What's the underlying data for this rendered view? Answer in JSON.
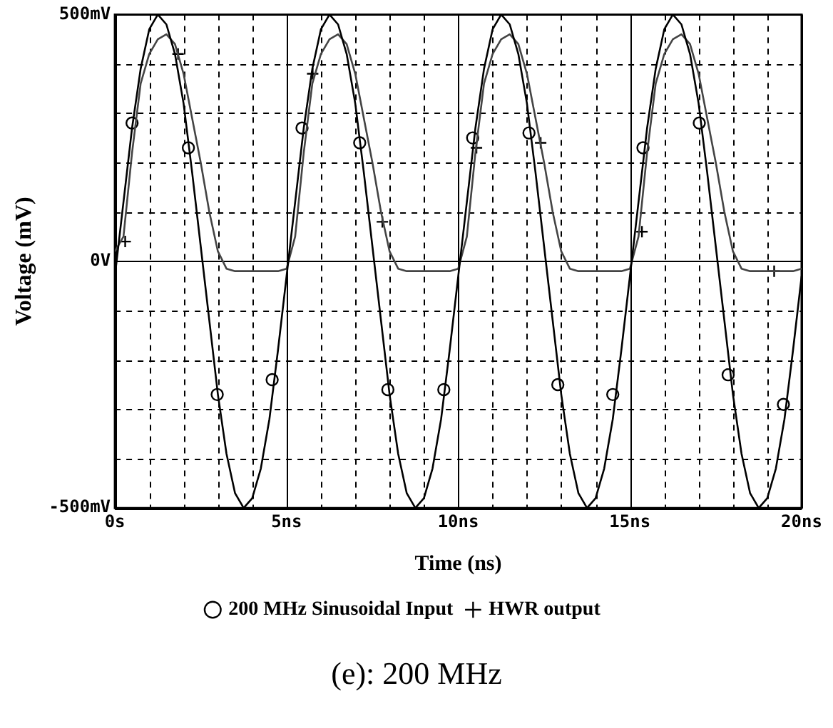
{
  "chart_data": {
    "type": "line",
    "xlabel": "Time (ns)",
    "ylabel": "Voltage (mV)",
    "xlim": [
      0,
      20
    ],
    "ylim": [
      -500,
      500
    ],
    "xticks": [
      {
        "value": 0,
        "label": "0s"
      },
      {
        "value": 1,
        "label": null
      },
      {
        "value": 2,
        "label": null
      },
      {
        "value": 3,
        "label": null
      },
      {
        "value": 4,
        "label": null
      },
      {
        "value": 5,
        "label": "5ns"
      },
      {
        "value": 6,
        "label": null
      },
      {
        "value": 7,
        "label": null
      },
      {
        "value": 8,
        "label": null
      },
      {
        "value": 9,
        "label": null
      },
      {
        "value": 10,
        "label": "10ns"
      },
      {
        "value": 11,
        "label": null
      },
      {
        "value": 12,
        "label": null
      },
      {
        "value": 13,
        "label": null
      },
      {
        "value": 14,
        "label": null
      },
      {
        "value": 15,
        "label": "15ns"
      },
      {
        "value": 16,
        "label": null
      },
      {
        "value": 17,
        "label": null
      },
      {
        "value": 18,
        "label": null
      },
      {
        "value": 19,
        "label": null
      },
      {
        "value": 20,
        "label": "20ns"
      }
    ],
    "yticks": [
      {
        "value": -500,
        "label": "-500mV"
      },
      {
        "value": -400,
        "label": null
      },
      {
        "value": -300,
        "label": null
      },
      {
        "value": -200,
        "label": null
      },
      {
        "value": -100,
        "label": null
      },
      {
        "value": 0,
        "label": "0V"
      },
      {
        "value": 100,
        "label": null
      },
      {
        "value": 200,
        "label": null
      },
      {
        "value": 300,
        "label": null
      },
      {
        "value": 400,
        "label": null
      },
      {
        "value": 500,
        "label": "500mV"
      }
    ],
    "grid": true,
    "legend": "bottom",
    "line_style": "solid",
    "series": [
      {
        "marker": "none",
        "color": "#000000",
        "x": [
          0,
          0.25,
          0.5,
          0.75,
          1,
          1.25,
          1.5,
          1.75,
          2,
          2.25,
          2.5,
          2.75,
          3,
          3.25,
          3.5,
          3.75,
          4,
          4.25,
          4.5,
          4.75,
          5,
          5.25,
          5.5,
          5.75,
          6,
          6.25,
          6.5,
          6.75,
          7,
          7.25,
          7.5,
          7.75,
          8,
          8.25,
          8.5,
          8.75,
          9,
          9.25,
          9.5,
          9.75,
          10,
          10.25,
          10.5,
          10.75,
          11,
          11.25,
          11.5,
          11.75,
          12,
          12.25,
          12.5,
          12.75,
          13,
          13.25,
          13.5,
          13.75,
          14,
          14.25,
          14.5,
          14.75,
          15,
          15.25,
          15.5,
          15.75,
          16,
          16.25,
          16.5,
          16.75,
          17,
          17.25,
          17.5,
          17.75,
          18,
          18.25,
          18.5,
          18.75,
          19,
          19.25,
          19.5,
          19.75,
          20
        ],
        "values": [
          -30,
          120,
          270,
          390,
          470,
          500,
          480,
          420,
          320,
          180,
          30,
          -120,
          -270,
          -390,
          -470,
          -500,
          -480,
          -420,
          -320,
          -180,
          -30,
          120,
          270,
          390,
          470,
          500,
          480,
          420,
          320,
          180,
          30,
          -120,
          -270,
          -390,
          -470,
          -500,
          -480,
          -420,
          -320,
          -180,
          -30,
          120,
          270,
          390,
          470,
          500,
          480,
          420,
          320,
          180,
          30,
          -120,
          -270,
          -390,
          -470,
          -500,
          -480,
          -420,
          -320,
          -180,
          -30,
          120,
          270,
          390,
          470,
          500,
          480,
          420,
          320,
          180,
          30,
          -120,
          -270,
          -390,
          -470,
          -500,
          -480,
          -420,
          -320,
          -180,
          -30
        ]
      },
      {
        "marker": "none",
        "color": "#444444",
        "x": [
          0,
          0.25,
          0.5,
          0.75,
          1,
          1.25,
          1.5,
          1.75,
          2,
          2.25,
          2.5,
          2.75,
          3,
          3.25,
          3.5,
          3.75,
          4,
          4.25,
          4.5,
          4.75,
          5,
          5.25,
          5.5,
          5.75,
          6,
          6.25,
          6.5,
          6.75,
          7,
          7.25,
          7.5,
          7.75,
          8,
          8.25,
          8.5,
          8.75,
          9,
          9.25,
          9.5,
          9.75,
          10,
          10.25,
          10.5,
          10.75,
          11,
          11.25,
          11.5,
          11.75,
          12,
          12.25,
          12.5,
          12.75,
          13,
          13.25,
          13.5,
          13.75,
          14,
          14.25,
          14.5,
          14.75,
          15,
          15.25,
          15.5,
          15.75,
          16,
          16.25,
          16.5,
          16.75,
          17,
          17.25,
          17.5,
          17.75,
          18,
          18.25,
          18.5,
          18.75,
          19,
          19.25,
          19.5,
          19.75,
          20
        ],
        "values": [
          20,
          50,
          220,
          360,
          420,
          450,
          460,
          440,
          380,
          290,
          200,
          100,
          20,
          -15,
          -20,
          -20,
          -20,
          -20,
          -20,
          -20,
          -15,
          50,
          220,
          360,
          420,
          450,
          460,
          440,
          380,
          290,
          200,
          100,
          20,
          -15,
          -20,
          -20,
          -20,
          -20,
          -20,
          -20,
          -15,
          50,
          220,
          360,
          420,
          450,
          460,
          440,
          380,
          290,
          200,
          100,
          20,
          -15,
          -20,
          -20,
          -20,
          -20,
          -20,
          -20,
          -15,
          50,
          220,
          360,
          420,
          450,
          460,
          440,
          380,
          290,
          200,
          100,
          20,
          -15,
          -20,
          -20,
          -20,
          -20,
          -20,
          -20,
          -15
        ]
      },
      {
        "type": "scatter",
        "name": "200 MHz Sinusoidal Input",
        "marker": "circle",
        "color": "#000000",
        "x": [
          0.5,
          2.14,
          2.98,
          4.58,
          5.45,
          7.13,
          7.95,
          9.58,
          10.42,
          12.06,
          12.9,
          14.5,
          15.38,
          17.02,
          17.86,
          19.47
        ],
        "values": [
          280,
          230,
          -270,
          -240,
          270,
          240,
          -260,
          -260,
          250,
          260,
          -250,
          -270,
          230,
          280,
          -230,
          -290
        ]
      },
      {
        "type": "scatter",
        "name": "HWR output",
        "marker": "cross",
        "color": "#000000",
        "x": [
          0.3,
          1.84,
          5.76,
          7.79,
          10.53,
          12.4,
          15.35,
          19.2
        ],
        "values": [
          40,
          420,
          380,
          80,
          230,
          240,
          60,
          -20
        ]
      }
    ],
    "annotations": [
      "(e): 200 MHz"
    ]
  }
}
